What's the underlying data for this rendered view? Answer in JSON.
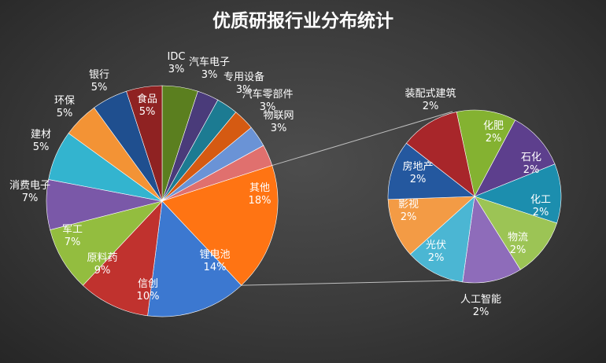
{
  "chart_data": {
    "type": "pie",
    "subtype": "pie-of-pie",
    "title": "优质研报行业分布统计",
    "main_pie": {
      "slices": [
        {
          "name": "食品",
          "value": 5,
          "label": "5%",
          "color": "#5b7f1f"
        },
        {
          "name": "IDC",
          "value": 3,
          "label": "3%",
          "color": "#4a3b7a"
        },
        {
          "name": "汽车电子",
          "value": 3,
          "label": "3%",
          "color": "#1c7b92"
        },
        {
          "name": "专用设备",
          "value": 3,
          "label": "3%",
          "color": "#d55a12"
        },
        {
          "name": "汽车零部件",
          "value": 3,
          "label": "3%",
          "color": "#6a93d6"
        },
        {
          "name": "物联网",
          "value": 3,
          "label": "3%",
          "color": "#e0706e"
        },
        {
          "name": "其他",
          "value": 18,
          "label": "18%",
          "color": "#ff7413"
        },
        {
          "name": "锂电池",
          "value": 14,
          "label": "14%",
          "color": "#3c78d0"
        },
        {
          "name": "信创",
          "value": 10,
          "label": "10%",
          "color": "#c0322e"
        },
        {
          "name": "原料药",
          "value": 9,
          "label": "9%",
          "color": "#93bd3f"
        },
        {
          "name": "军工",
          "value": 7,
          "label": "7%",
          "color": "#7a58a8"
        },
        {
          "name": "消费电子",
          "value": 7,
          "label": "7%",
          "color": "#33b4cf"
        },
        {
          "name": "建材",
          "value": 5,
          "label": "5%",
          "color": "#f39335"
        },
        {
          "name": "环保",
          "value": 5,
          "label": "5%",
          "color": "#1f4f8f"
        },
        {
          "name": "银行",
          "value": 5,
          "label": "5%",
          "color": "#8f2222"
        }
      ]
    },
    "secondary_pie": {
      "parent": "其他",
      "slices": [
        {
          "name": "化肥",
          "value": 2,
          "label": "2%",
          "color": "#84b231"
        },
        {
          "name": "石化",
          "value": 2,
          "label": "2%",
          "color": "#5d3f8d"
        },
        {
          "name": "化工",
          "value": 2,
          "label": "2%",
          "color": "#1c8eae"
        },
        {
          "name": "物流",
          "value": 2,
          "label": "2%",
          "color": "#9cc455"
        },
        {
          "name": "人工智能",
          "value": 2,
          "label": "2%",
          "color": "#8e6cba"
        },
        {
          "name": "光伏",
          "value": 2,
          "label": "2%",
          "color": "#4bb6d3"
        },
        {
          "name": "影视",
          "value": 2,
          "label": "2%",
          "color": "#f39b45"
        },
        {
          "name": "房地产",
          "value": 2,
          "label": "2%",
          "color": "#24589f"
        },
        {
          "name": "装配式建筑",
          "value": 2,
          "label": "2%",
          "color": "#a8262a"
        }
      ]
    }
  }
}
